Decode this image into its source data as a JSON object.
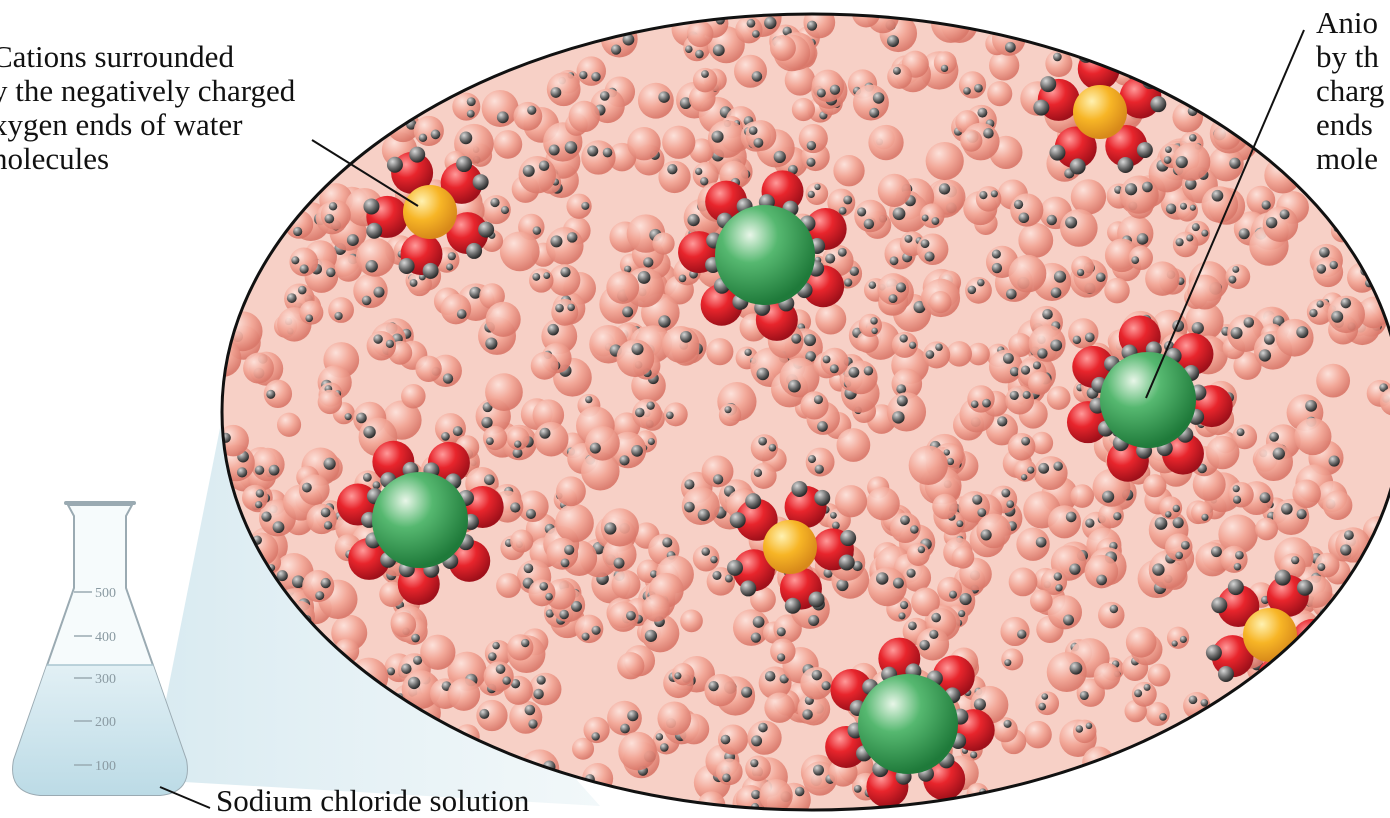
{
  "labels": {
    "cations_lines": [
      "Cations surrounded",
      "y the negatively charged",
      "xygen ends of water",
      "nolecules"
    ],
    "anions_lines": [
      "Anio",
      "by th",
      "charg",
      "ends",
      "mole"
    ],
    "solution": "Sodium chloride solution"
  },
  "flask": {
    "graduations": [
      "500",
      "400",
      "300",
      "200",
      "100"
    ]
  },
  "colors": {
    "water_oxygen_bg": "#f0a090",
    "hydration_oxygen": "#e0242c",
    "hydrogen": "#555555",
    "cation": "#f5b020",
    "anion": "#2e9a4e",
    "solution_tint": "#cfe6ee"
  }
}
